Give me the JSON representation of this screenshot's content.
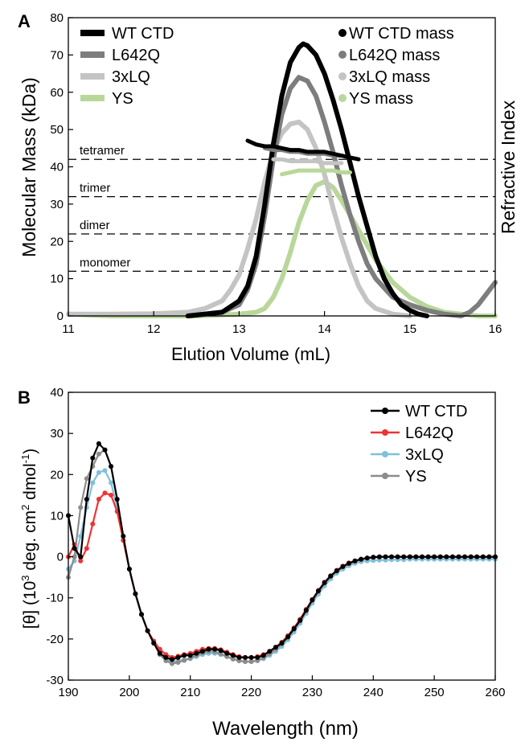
{
  "colors": {
    "wt": "#000000",
    "l642q_a": "#7d7d7d",
    "lq3_a": "#c4c4c4",
    "ys_a": "#b9d79a",
    "l642q_b": "#ee3333",
    "lq3_b": "#7fc0dd",
    "ys_b": "#8c8c8c"
  },
  "chart_data": [
    {
      "panel_label": "A",
      "type": "line",
      "xlabel": "Elution Volume (mL)",
      "ylabel": "Molecular Mass (kDa)",
      "ylabel_right": "Refractive Index",
      "xlim": [
        11,
        16
      ],
      "ylim": [
        0,
        80
      ],
      "xticks": [
        "11",
        "12",
        "13",
        "14",
        "15",
        "16"
      ],
      "yticks": [
        "0",
        "10",
        "20",
        "30",
        "40",
        "50",
        "60",
        "70",
        "80"
      ],
      "reference_lines": [
        {
          "label": "tetramer",
          "y": 42
        },
        {
          "label": "trimer",
          "y": 32
        },
        {
          "label": "dimer",
          "y": 22
        },
        {
          "label": "monomer",
          "y": 12
        }
      ],
      "legend_left": [
        "WT CTD",
        "L642Q",
        "3xLQ",
        "YS"
      ],
      "legend_right": [
        "WT CTD mass",
        "L642Q mass",
        "3xLQ mass",
        "YS mass"
      ],
      "series": [
        {
          "name": "WT CTD",
          "key": "wt",
          "x": [
            12.4,
            12.8,
            13.0,
            13.1,
            13.2,
            13.3,
            13.4,
            13.5,
            13.6,
            13.7,
            13.75,
            13.8,
            13.9,
            14.0,
            14.1,
            14.2,
            14.3,
            14.4,
            14.5,
            14.6,
            14.7,
            14.8,
            14.9,
            15.0,
            15.1,
            15.2
          ],
          "y": [
            0,
            1,
            4,
            8,
            16,
            30,
            46,
            59,
            68,
            72,
            73,
            72.5,
            70,
            65,
            58,
            50,
            41,
            32,
            24,
            16,
            10,
            6,
            3,
            1.5,
            0.5,
            0
          ]
        },
        {
          "name": "L642Q",
          "key": "l642q",
          "x": [
            12.4,
            12.8,
            13.0,
            13.1,
            13.2,
            13.3,
            13.4,
            13.5,
            13.6,
            13.7,
            13.8,
            13.9,
            14.0,
            14.1,
            14.2,
            14.3,
            14.4,
            14.5,
            14.6,
            14.8,
            15.0,
            15.2,
            15.4,
            15.6,
            15.7,
            15.8,
            15.9,
            16.0
          ],
          "y": [
            0,
            1,
            3,
            7,
            14,
            27,
            42,
            54,
            61,
            64,
            63,
            59,
            52,
            44,
            35,
            27,
            20,
            14,
            10,
            5,
            3,
            1.5,
            0.5,
            0,
            1,
            3,
            6,
            9
          ]
        },
        {
          "name": "3xLQ",
          "key": "lq3",
          "x": [
            11.0,
            11.5,
            12.0,
            12.4,
            12.6,
            12.8,
            12.9,
            13.0,
            13.1,
            13.2,
            13.3,
            13.4,
            13.5,
            13.6,
            13.7,
            13.8,
            13.9,
            14.0,
            14.1,
            14.2,
            14.3,
            14.4,
            14.5,
            14.6,
            14.8,
            15.0
          ],
          "y": [
            0.5,
            0.5,
            0.6,
            1,
            2,
            4,
            7,
            11,
            18,
            26,
            36,
            44,
            49,
            51.5,
            52,
            50,
            45,
            38,
            29,
            21,
            14,
            8,
            4,
            2,
            0.5,
            0
          ]
        },
        {
          "name": "YS",
          "key": "ys",
          "x": [
            11.0,
            11.5,
            12.0,
            12.5,
            13.0,
            13.2,
            13.3,
            13.4,
            13.5,
            13.6,
            13.7,
            13.8,
            13.9,
            14.0,
            14.1,
            14.2,
            14.3,
            14.4,
            14.5,
            14.6,
            14.8,
            15.0,
            15.2,
            15.4,
            15.6,
            15.8,
            16.0
          ],
          "y": [
            0.5,
            0,
            0,
            0,
            0.5,
            1,
            2,
            5,
            10,
            17,
            25,
            31,
            35,
            36,
            34.5,
            31,
            27,
            23,
            19,
            15,
            9,
            5,
            2.5,
            1,
            0.5,
            0,
            0
          ]
        },
        {
          "name": "WT CTD mass",
          "key": "wt",
          "x": [
            13.1,
            13.2,
            13.3,
            13.4,
            13.5,
            13.6,
            13.7,
            13.8,
            13.9,
            14.0,
            14.1,
            14.2,
            14.3,
            14.4
          ],
          "y": [
            47,
            46,
            45.5,
            45.5,
            45,
            44.5,
            44.5,
            44,
            44,
            44,
            43.5,
            43,
            42.5,
            42
          ]
        },
        {
          "name": "L642Q mass",
          "key": "l642q",
          "x": [
            13.3,
            13.4,
            13.5,
            13.6,
            13.7,
            13.8,
            13.9,
            14.0,
            14.1,
            14.2
          ],
          "y": [
            45,
            44.5,
            44.5,
            44,
            44,
            43.5,
            43.5,
            43.5,
            43,
            43
          ]
        },
        {
          "name": "3xLQ mass",
          "key": "lq3",
          "x": [
            13.4,
            13.5,
            13.6,
            13.7,
            13.8,
            13.9,
            14.0,
            14.1,
            14.2
          ],
          "y": [
            42,
            42,
            41.5,
            41.5,
            41.5,
            41.5,
            41,
            41,
            41
          ]
        },
        {
          "name": "YS mass",
          "key": "ys",
          "x": [
            13.5,
            13.6,
            13.7,
            13.8,
            13.9,
            14.0,
            14.1,
            14.2,
            14.3
          ],
          "y": [
            38,
            38.5,
            39,
            39,
            39,
            39,
            39,
            38.5,
            38.5
          ]
        }
      ]
    },
    {
      "panel_label": "B",
      "type": "line",
      "xlabel": "Wavelength (nm)",
      "ylabel_parts": [
        "[θ] (10",
        "3",
        " deg. cm",
        "2",
        " dmol",
        "-1",
        ")"
      ],
      "xlim": [
        190,
        260
      ],
      "ylim": [
        -30,
        40
      ],
      "xticks": [
        "190",
        "200",
        "210",
        "220",
        "230",
        "240",
        "250",
        "260"
      ],
      "yticks": [
        "-30",
        "-20",
        "-10",
        "0",
        "10",
        "20",
        "30",
        "40"
      ],
      "x": [
        190,
        191,
        192,
        193,
        194,
        195,
        196,
        197,
        198,
        199,
        200,
        201,
        202,
        203,
        204,
        205,
        206,
        207,
        208,
        209,
        210,
        211,
        212,
        213,
        214,
        215,
        216,
        217,
        218,
        219,
        220,
        221,
        222,
        223,
        224,
        225,
        226,
        227,
        228,
        229,
        230,
        231,
        232,
        233,
        234,
        235,
        236,
        237,
        238,
        239,
        240,
        241,
        242,
        243,
        244,
        245,
        246,
        247,
        248,
        249,
        250,
        251,
        252,
        253,
        254,
        255,
        256,
        257,
        258,
        259,
        260
      ],
      "series": [
        {
          "name": "WT CTD",
          "key": "wt",
          "y": [
            10,
            2,
            0,
            14,
            24,
            27.5,
            26,
            22,
            14,
            5,
            -3,
            -9,
            -14,
            -18,
            -21,
            -23.5,
            -24.5,
            -25,
            -24.5,
            -24,
            -24,
            -23.5,
            -23,
            -22.5,
            -22.5,
            -22.8,
            -23.5,
            -24,
            -24.5,
            -24.5,
            -24.5,
            -24.5,
            -24,
            -23,
            -22,
            -21,
            -19.5,
            -17.5,
            -15.5,
            -13,
            -10.5,
            -8.3,
            -6.3,
            -4.7,
            -3.4,
            -2.4,
            -1.6,
            -1,
            -0.6,
            -0.3,
            -0.1,
            0,
            0,
            0,
            0,
            0,
            0,
            0,
            0,
            0,
            0,
            0,
            0,
            0,
            0,
            0,
            0,
            0,
            0,
            0,
            0
          ]
        },
        {
          "name": "L642Q",
          "key": "l642q",
          "y": [
            0,
            3,
            -1,
            2,
            8,
            14,
            15.5,
            15,
            11,
            4,
            -3,
            -9,
            -14,
            -18,
            -20.5,
            -22.5,
            -23.8,
            -24.5,
            -24.2,
            -23.8,
            -23.5,
            -23,
            -22.5,
            -22.3,
            -22.3,
            -22.6,
            -23.2,
            -23.8,
            -24.3,
            -24.5,
            -24.5,
            -24.3,
            -23.8,
            -23,
            -22,
            -20.8,
            -19.2,
            -17.3,
            -15.2,
            -12.8,
            -10.4,
            -8.2,
            -6.2,
            -4.6,
            -3.3,
            -2.3,
            -1.5,
            -1,
            -0.6,
            -0.3,
            -0.1,
            0,
            0,
            0,
            0,
            0,
            0,
            0,
            0,
            0,
            0,
            0,
            0,
            0,
            0,
            0,
            0,
            0,
            0,
            0,
            0
          ]
        },
        {
          "name": "3xLQ",
          "key": "lq3",
          "y": [
            -3,
            -1,
            5,
            12,
            18,
            20.5,
            21,
            18,
            12,
            4,
            -3,
            -9,
            -14,
            -18,
            -21,
            -23.5,
            -25,
            -25.5,
            -25.3,
            -25,
            -24.8,
            -24.3,
            -23.8,
            -23.5,
            -23.5,
            -23.8,
            -24.3,
            -24.8,
            -25.2,
            -25.5,
            -25.5,
            -25.3,
            -24.8,
            -24,
            -23,
            -21.8,
            -20.2,
            -18.3,
            -16.2,
            -13.8,
            -11.3,
            -9.1,
            -7.1,
            -5.4,
            -4,
            -3,
            -2.2,
            -1.6,
            -1.2,
            -1,
            -0.9,
            -0.8,
            -0.8,
            -0.7,
            -0.7,
            -0.7,
            -0.6,
            -0.6,
            -0.6,
            -0.6,
            -0.6,
            -0.6,
            -0.6,
            -0.6,
            -0.6,
            -0.6,
            -0.6,
            -0.6,
            -0.6,
            -0.6,
            -0.6
          ]
        },
        {
          "name": "YS",
          "key": "ys",
          "y": [
            -5,
            0,
            12,
            19,
            22,
            25,
            26,
            22,
            14,
            5,
            -3,
            -9,
            -14,
            -18,
            -21,
            -23.8,
            -25.3,
            -26,
            -25.7,
            -25.2,
            -24.7,
            -24,
            -23.4,
            -23,
            -23.1,
            -23.6,
            -24.3,
            -24.9,
            -25.3,
            -25.5,
            -25.5,
            -25.2,
            -24.6,
            -23.6,
            -22.5,
            -21.2,
            -19.6,
            -17.7,
            -15.6,
            -13.2,
            -10.7,
            -8.5,
            -6.5,
            -4.8,
            -3.5,
            -2.5,
            -1.7,
            -1.1,
            -0.7,
            -0.4,
            -0.2,
            -0.1,
            0,
            0,
            0,
            0,
            0,
            0,
            0,
            0,
            0,
            0,
            0,
            0,
            0,
            0,
            0,
            0,
            0,
            0,
            0
          ]
        }
      ]
    }
  ]
}
